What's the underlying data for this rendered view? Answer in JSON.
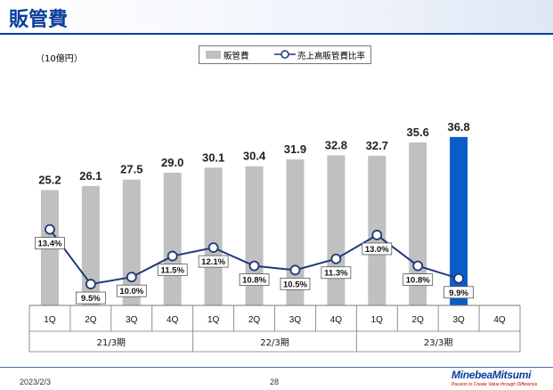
{
  "header": {
    "title": "販管費"
  },
  "unit_label": "（10億円）",
  "legend": {
    "bar_label": "販管費",
    "line_label": "売上高販管費比率"
  },
  "chart_data": {
    "type": "bar",
    "categories": [
      "1Q",
      "2Q",
      "3Q",
      "4Q",
      "1Q",
      "2Q",
      "3Q",
      "4Q",
      "1Q",
      "2Q",
      "3Q",
      "4Q"
    ],
    "groups": [
      {
        "label": "21/3期",
        "span": 4
      },
      {
        "label": "22/3期",
        "span": 4
      },
      {
        "label": "23/3期",
        "span": 4
      }
    ],
    "series": [
      {
        "name": "販管費",
        "type": "bar",
        "values": [
          25.2,
          26.1,
          27.5,
          29.0,
          30.1,
          30.4,
          31.9,
          32.8,
          32.7,
          35.6,
          36.8,
          null
        ],
        "labels": [
          "25.2",
          "26.1",
          "27.5",
          "29.0",
          "30.1",
          "30.4",
          "31.9",
          "32.8",
          "32.7",
          "35.6",
          "36.8",
          ""
        ]
      },
      {
        "name": "売上高販管費比率",
        "type": "line",
        "values": [
          13.4,
          9.5,
          10.0,
          11.5,
          12.1,
          10.8,
          10.5,
          11.3,
          13.0,
          10.8,
          9.9,
          null
        ],
        "labels": [
          "13.4%",
          "9.5%",
          "10.0%",
          "11.5%",
          "12.1%",
          "10.8%",
          "10.5%",
          "11.3%",
          "13.0%",
          "10.8%",
          "9.9%",
          ""
        ]
      }
    ],
    "highlight_index": 10,
    "colors": {
      "bar": "#c0c0c0",
      "highlight": "#0a5cc8",
      "line": "#1f3a7a"
    }
  },
  "footer": {
    "date": "2023/2/3",
    "page": "28",
    "logo": "MinebeaMitsumi",
    "tagline": "Passion to Create Value through Difference"
  }
}
